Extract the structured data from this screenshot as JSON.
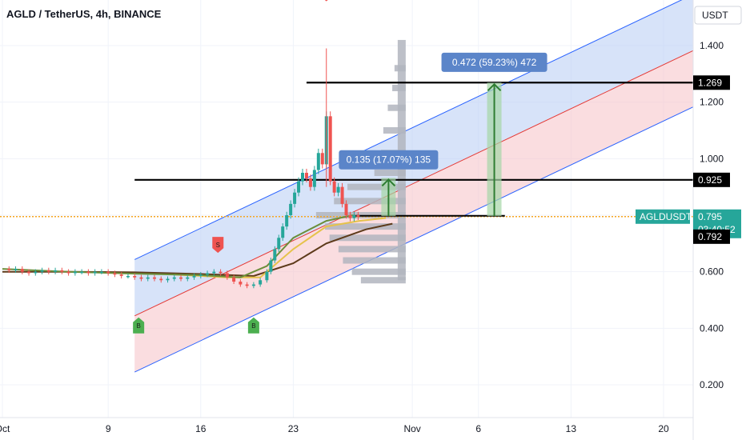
{
  "chart_data": {
    "type": "candlestick",
    "title": "AGLD / TetherUS, 4h, BINANCE",
    "currency": "USDT",
    "y_ticks": [
      "1.400",
      "1.200",
      "1.000",
      "0.800",
      "0.600",
      "0.400",
      "0.200"
    ],
    "y_tick_values": [
      1.4,
      1.2,
      1.0,
      0.8,
      0.6,
      0.4,
      0.2
    ],
    "ylim": [
      0.1,
      1.55
    ],
    "x_ticks": [
      {
        "label": "Oct",
        "day": 1
      },
      {
        "label": "9",
        "day": 9
      },
      {
        "label": "16",
        "day": 16
      },
      {
        "label": "23",
        "day": 23
      },
      {
        "label": "Nov",
        "day": 32
      },
      {
        "label": "6",
        "day": 37
      },
      {
        "label": "13",
        "day": 44
      },
      {
        "label": "20",
        "day": 51
      }
    ],
    "horizontal_levels": [
      {
        "label": "1.269",
        "value": 1.269,
        "from_day": 24
      },
      {
        "label": "0.925",
        "value": 0.925,
        "from_day": 11
      }
    ],
    "price_labels": {
      "symbol": "AGLDUSDT",
      "last_price": "0.795",
      "countdown": "03:40:52",
      "ma_value": "0.792",
      "ma_value_num": 0.792,
      "last_price_num": 0.795
    },
    "measurements": [
      {
        "text": "0.472 (59.23%) 472",
        "day": 38.2,
        "from": 0.797,
        "to": 1.269
      },
      {
        "text": "0.135 (17.07%) 135",
        "day": 30.2,
        "from": 0.797,
        "to": 0.932
      }
    ],
    "signals": [
      {
        "type": "S",
        "day": 25.5,
        "price": 1.585
      },
      {
        "type": "S",
        "day": 17.3,
        "price": 0.695
      },
      {
        "type": "B",
        "day": 11.3,
        "price": 0.41
      },
      {
        "type": "B",
        "day": 20.0,
        "price": 0.41
      }
    ],
    "channel": {
      "start_day": 11,
      "end_day": 54,
      "upper_start": 0.643,
      "upper_end": 1.598,
      "mid_start": 0.444,
      "mid_end": 1.399,
      "lower_start": 0.245,
      "lower_end": 1.2
    },
    "candles": [
      [
        1.0,
        0.61
      ],
      [
        1.5,
        0.605
      ],
      [
        2.0,
        0.61
      ],
      [
        2.5,
        0.6
      ],
      [
        3.0,
        0.595
      ],
      [
        3.5,
        0.6
      ],
      [
        4.0,
        0.605
      ],
      [
        4.5,
        0.6
      ],
      [
        5.0,
        0.605
      ],
      [
        5.5,
        0.6
      ],
      [
        6.0,
        0.595
      ],
      [
        6.5,
        0.6
      ],
      [
        7.0,
        0.6
      ],
      [
        7.5,
        0.595
      ],
      [
        8.0,
        0.6
      ],
      [
        8.5,
        0.6
      ],
      [
        9.0,
        0.595
      ],
      [
        9.5,
        0.59
      ],
      [
        10.0,
        0.585
      ],
      [
        10.5,
        0.585
      ],
      [
        11.0,
        0.58
      ],
      [
        11.5,
        0.575
      ],
      [
        12.0,
        0.58
      ],
      [
        12.5,
        0.575
      ],
      [
        13.0,
        0.57
      ],
      [
        13.5,
        0.575
      ],
      [
        14.0,
        0.58
      ],
      [
        14.5,
        0.575
      ],
      [
        15.0,
        0.58
      ],
      [
        15.5,
        0.585
      ],
      [
        16.0,
        0.59
      ],
      [
        16.5,
        0.595
      ],
      [
        17.0,
        0.6
      ],
      [
        17.5,
        0.595
      ],
      [
        18.0,
        0.58
      ],
      [
        18.5,
        0.565
      ],
      [
        19.0,
        0.555
      ],
      [
        19.5,
        0.55
      ],
      [
        20.0,
        0.555
      ],
      [
        20.5,
        0.57
      ],
      [
        21.0,
        0.6
      ],
      [
        21.3,
        0.64
      ],
      [
        21.6,
        0.68
      ],
      [
        21.9,
        0.72
      ],
      [
        22.2,
        0.76
      ],
      [
        22.5,
        0.8
      ],
      [
        22.8,
        0.84
      ],
      [
        23.1,
        0.88
      ],
      [
        23.4,
        0.92
      ],
      [
        23.7,
        0.95
      ],
      [
        24.0,
        0.93
      ],
      [
        24.3,
        0.9
      ],
      [
        24.6,
        0.96
      ],
      [
        24.9,
        1.02
      ],
      [
        25.2,
        0.98
      ],
      [
        25.5,
        1.15
      ],
      [
        25.8,
        0.92
      ],
      [
        26.1,
        0.88
      ],
      [
        26.4,
        0.9
      ],
      [
        26.7,
        0.84
      ],
      [
        27.0,
        0.8
      ],
      [
        27.3,
        0.79
      ],
      [
        27.6,
        0.8
      ],
      [
        27.9,
        0.795
      ]
    ],
    "volume_profile": [
      {
        "price": 1.32,
        "width": 0.5
      },
      {
        "price": 1.25,
        "width": 0.6
      },
      {
        "price": 1.18,
        "width": 0.8
      },
      {
        "price": 1.1,
        "width": 1.0
      },
      {
        "price": 1.02,
        "width": 1.1
      },
      {
        "price": 0.95,
        "width": 1.4
      },
      {
        "price": 0.9,
        "width": 2.6
      },
      {
        "price": 0.85,
        "width": 3.2
      },
      {
        "price": 0.8,
        "width": 4.0
      },
      {
        "price": 0.76,
        "width": 3.6
      },
      {
        "price": 0.72,
        "width": 3.4
      },
      {
        "price": 0.68,
        "width": 3.0
      },
      {
        "price": 0.64,
        "width": 2.8
      },
      {
        "price": 0.6,
        "width": 2.4
      },
      {
        "price": 0.57,
        "width": 2.0
      }
    ],
    "moving_averages": [
      {
        "name": "",
        "color": "#5d3a1a",
        "points": [
          [
            1,
            0.6
          ],
          [
            6,
            0.6
          ],
          [
            11,
            0.598
          ],
          [
            16,
            0.592
          ],
          [
            20,
            0.585
          ],
          [
            23,
            0.63
          ],
          [
            25.5,
            0.7
          ],
          [
            28.5,
            0.75
          ],
          [
            30.5,
            0.77
          ]
        ]
      },
      {
        "name": "",
        "color": "#e6c24a",
        "points": [
          [
            14,
            0.59
          ],
          [
            18,
            0.58
          ],
          [
            20.5,
            0.58
          ],
          [
            23,
            0.68
          ],
          [
            25.5,
            0.76
          ],
          [
            28,
            0.78
          ],
          [
            30,
            0.79
          ]
        ]
      },
      {
        "name": "",
        "color": "#6b8e3a",
        "points": [
          [
            1,
            0.61
          ],
          [
            6,
            0.6
          ],
          [
            11,
            0.593
          ],
          [
            16,
            0.588
          ],
          [
            19,
            0.58
          ],
          [
            21,
            0.62
          ],
          [
            23,
            0.72
          ],
          [
            25.5,
            0.78
          ],
          [
            27.5,
            0.8
          ]
        ]
      }
    ],
    "colors": {
      "channel_upper_fill": "#bcd0f5",
      "channel_lower_fill": "#f7c7cb",
      "channel_line": "#2962ff",
      "channel_mid": "#e53935",
      "candle_up": "#26a69a",
      "candle_down": "#ef5350",
      "last_price_tag": "#26a69a",
      "measure_bg": "#5b85c9",
      "measure_arrow": "#2e7d32",
      "volume": "#b2b5be",
      "orange_line": "#f5a623"
    }
  }
}
